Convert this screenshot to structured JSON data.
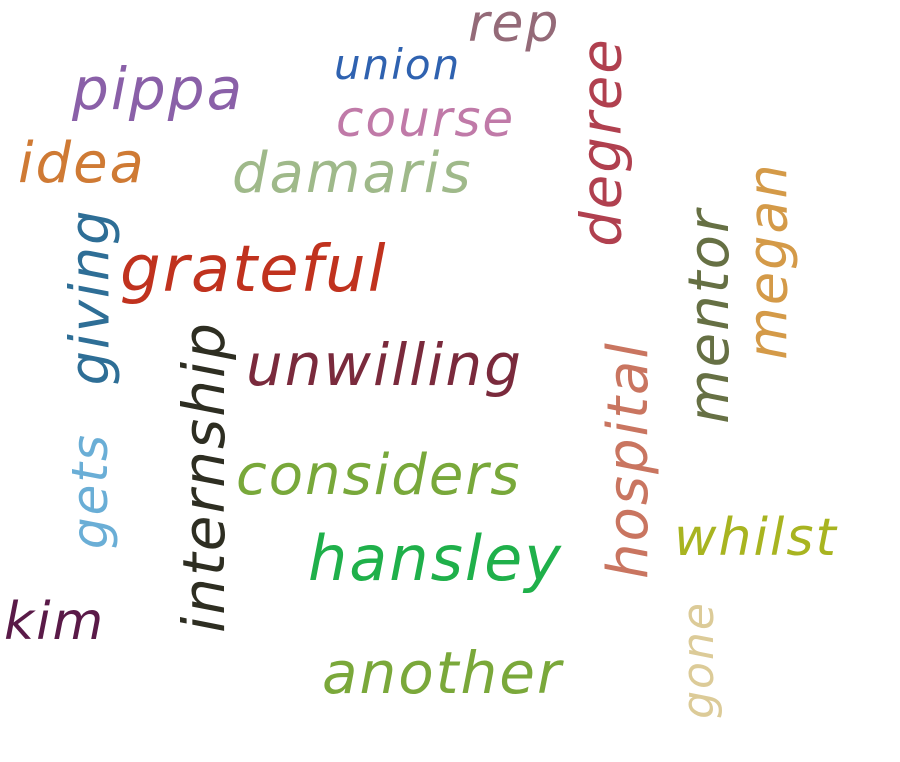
{
  "words": [
    {
      "id": "rep",
      "text": "rep",
      "color": "#946a78"
    },
    {
      "id": "union",
      "text": "union",
      "color": "#2f62b0"
    },
    {
      "id": "pippa",
      "text": "pippa",
      "color": "#8a60a8"
    },
    {
      "id": "course",
      "text": "course",
      "color": "#c07aa8"
    },
    {
      "id": "degree",
      "text": "degree",
      "color": "#b0404f"
    },
    {
      "id": "idea",
      "text": "idea",
      "color": "#cf7a34"
    },
    {
      "id": "damaris",
      "text": "damaris",
      "color": "#9fb98a"
    },
    {
      "id": "megan",
      "text": "megan",
      "color": "#d49a48"
    },
    {
      "id": "giving",
      "text": "giving",
      "color": "#2e6e96"
    },
    {
      "id": "grateful",
      "text": "grateful",
      "color": "#c0321e"
    },
    {
      "id": "mentor",
      "text": "mentor",
      "color": "#667044"
    },
    {
      "id": "internship",
      "text": "internship",
      "color": "#2e2e22"
    },
    {
      "id": "unwilling",
      "text": "unwilling",
      "color": "#7a2a3c"
    },
    {
      "id": "hospital",
      "text": "hospital",
      "color": "#c97560"
    },
    {
      "id": "gets",
      "text": "gets",
      "color": "#6aaed6"
    },
    {
      "id": "considers",
      "text": "considers",
      "color": "#78a83a"
    },
    {
      "id": "whilst",
      "text": "whilst",
      "color": "#a8b420"
    },
    {
      "id": "hansley",
      "text": "hansley",
      "color": "#1fb04a"
    },
    {
      "id": "kim",
      "text": "kim",
      "color": "#5a1a48"
    },
    {
      "id": "gone",
      "text": "gone",
      "color": "#dccb98"
    },
    {
      "id": "another",
      "text": "another",
      "color": "#7aa83a"
    }
  ]
}
